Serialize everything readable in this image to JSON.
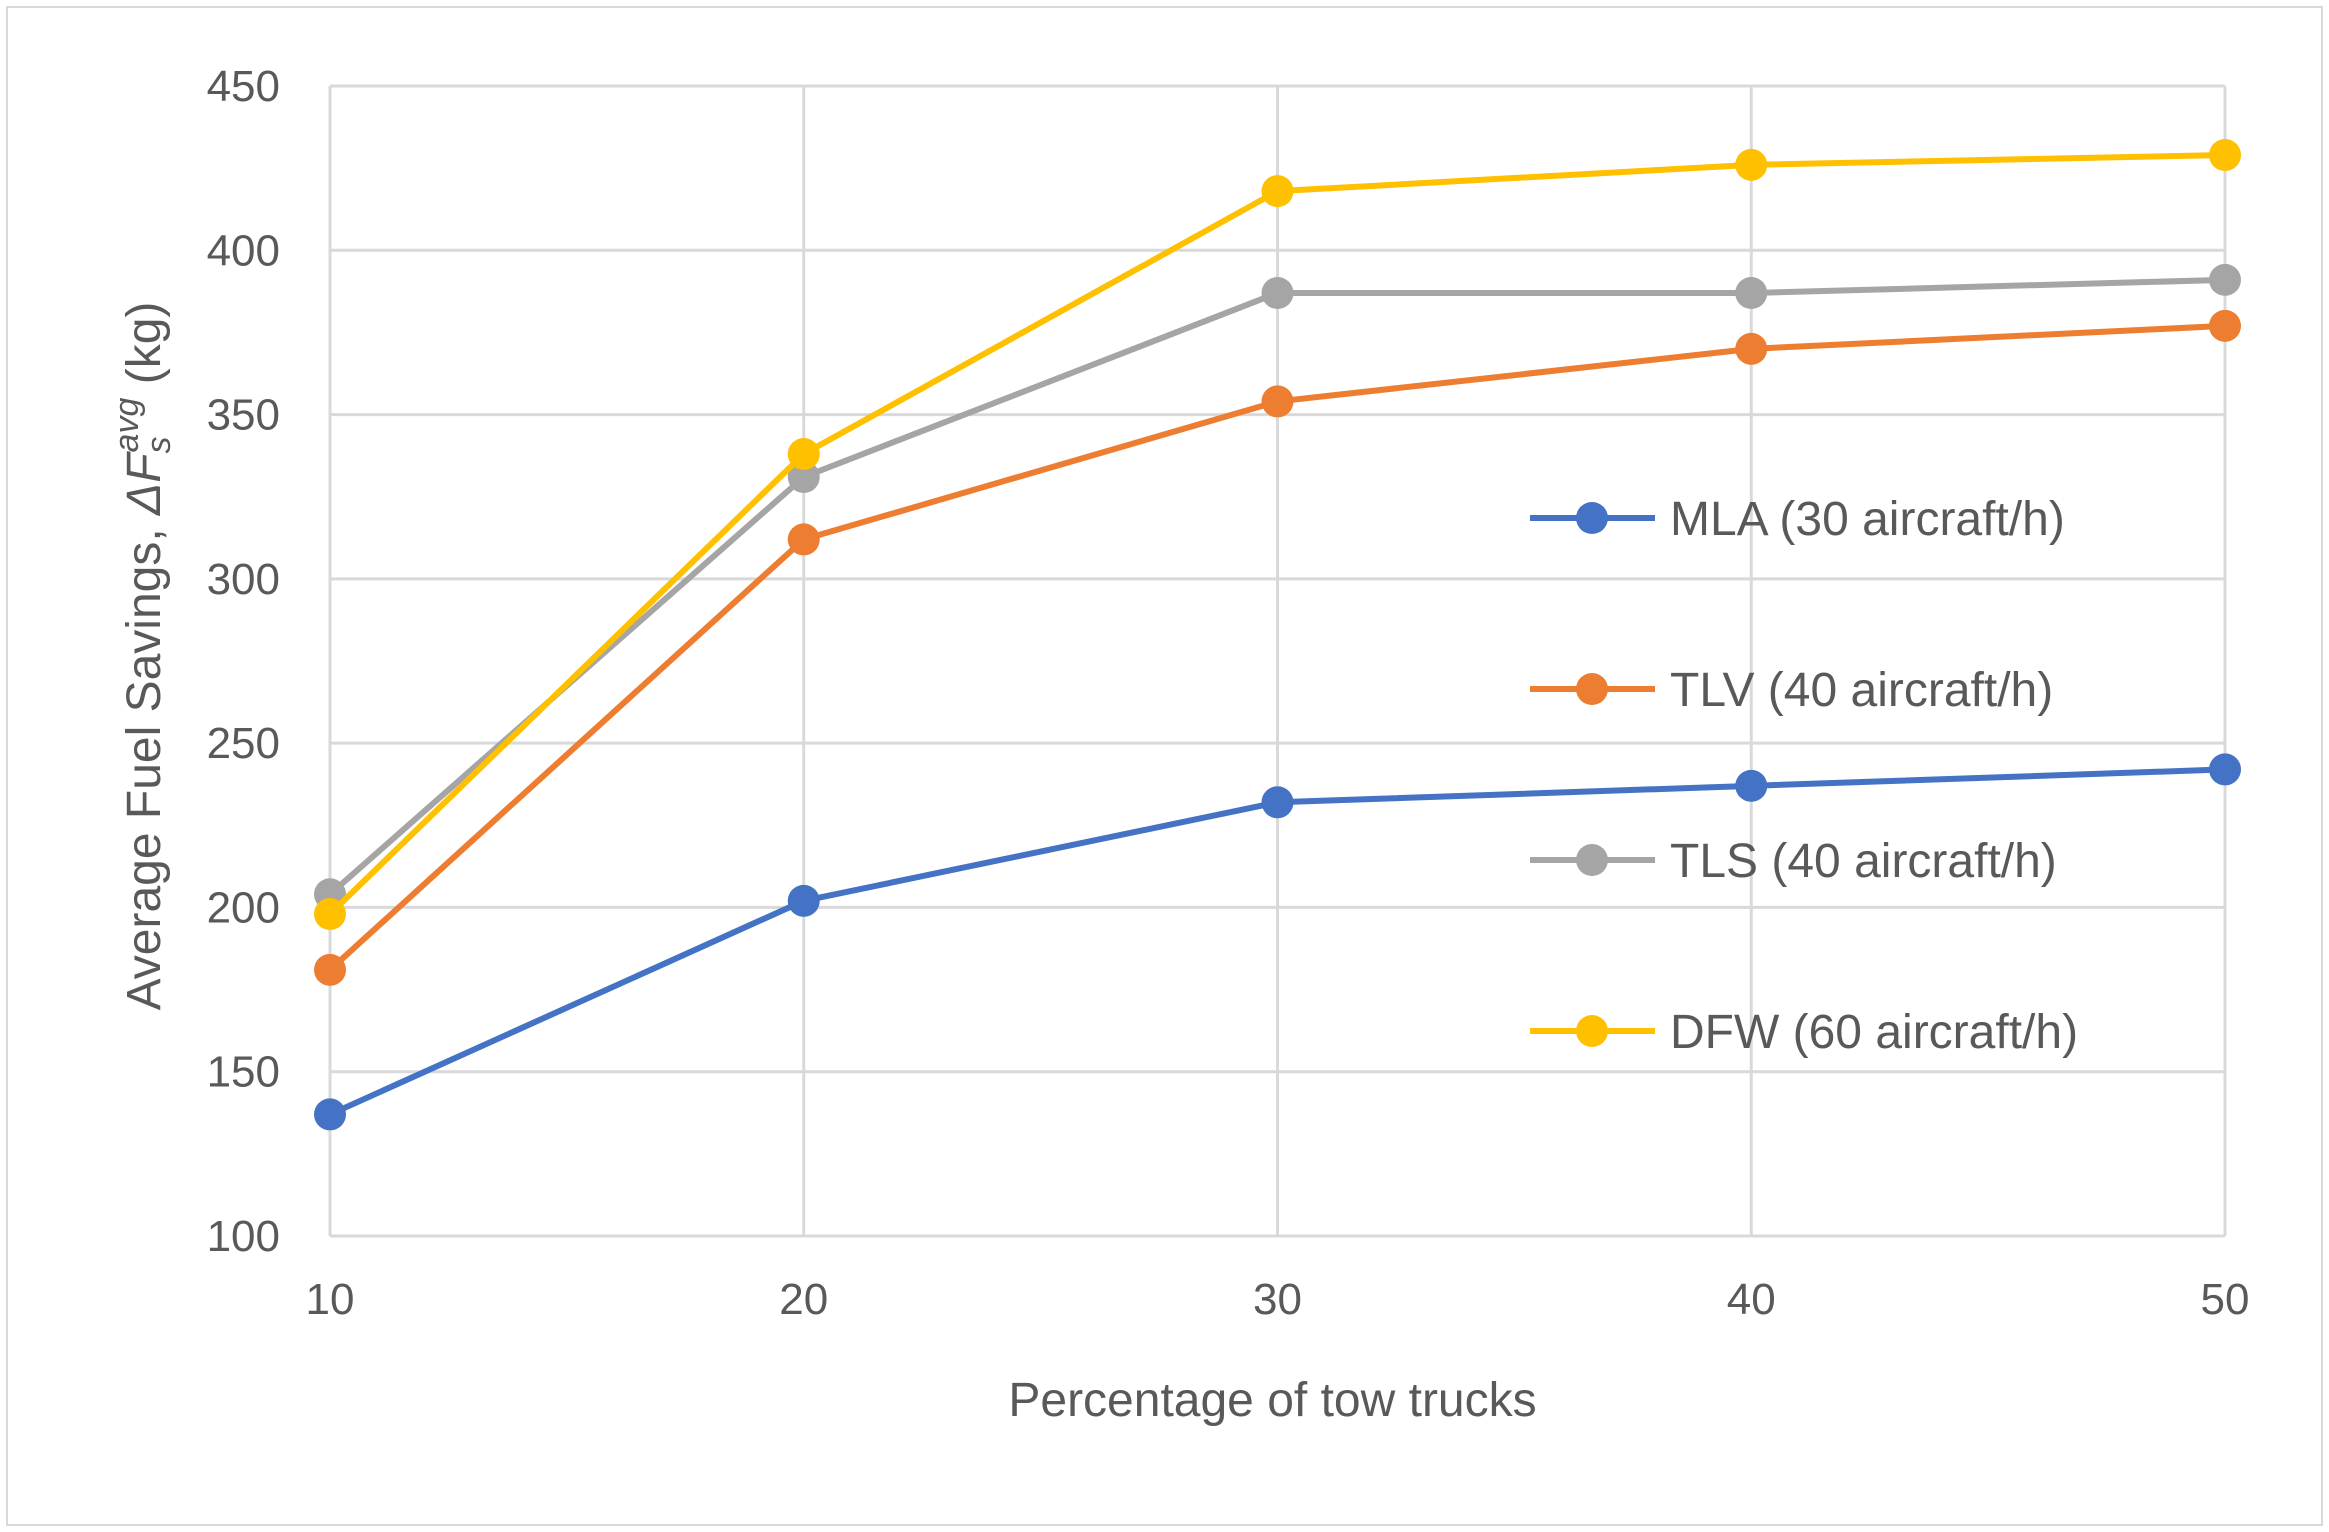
{
  "chart_data": {
    "type": "line",
    "title": "",
    "xlabel": "Percentage of tow trucks",
    "ylabel": {
      "prefix": "Average Fuel Savings, ",
      "symbol": "ΔF",
      "subscript": "s",
      "superscript": "avg",
      "suffix": " (kg)"
    },
    "x": [
      10,
      20,
      30,
      40,
      50
    ],
    "xlim": [
      10,
      50
    ],
    "ylim": [
      100,
      450
    ],
    "yticks": [
      100,
      150,
      200,
      250,
      300,
      350,
      400,
      450
    ],
    "grid": true,
    "legend_position": "right",
    "series": [
      {
        "name": "MLA (30 aircraft/h)",
        "color": "#4472c4",
        "values": [
          137,
          202,
          232,
          237,
          242
        ]
      },
      {
        "name": "TLV (40 aircraft/h)",
        "color": "#ed7d31",
        "values": [
          181,
          312,
          354,
          370,
          377
        ]
      },
      {
        "name": "TLS (40 aircraft/h)",
        "color": "#a5a5a5",
        "values": [
          204,
          331,
          387,
          387,
          391
        ]
      },
      {
        "name": "DFW (60 aircraft/h)",
        "color": "#ffc000",
        "values": [
          198,
          338,
          418,
          426,
          429
        ]
      }
    ]
  }
}
